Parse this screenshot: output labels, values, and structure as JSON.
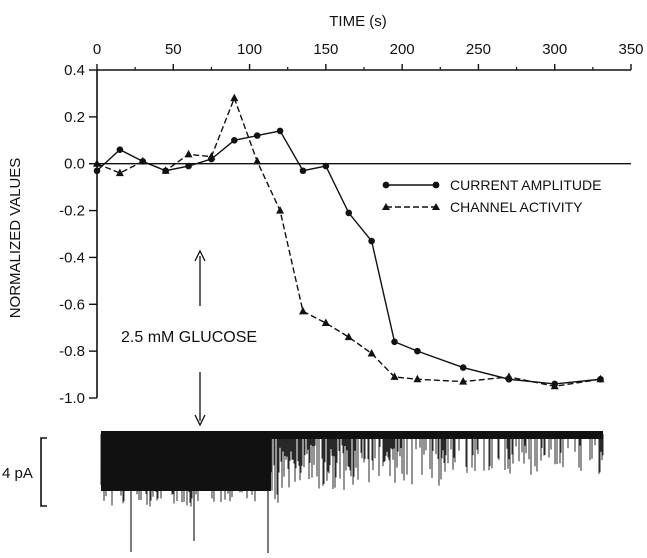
{
  "chart_data": {
    "type": "line",
    "xlabel": "TIME (s)",
    "ylabel": "NORMALIZED VALUES",
    "xlim": [
      0,
      350
    ],
    "ylim": [
      -1.0,
      0.4
    ],
    "x_ticks": [
      "0",
      "50",
      "100",
      "150",
      "200",
      "250",
      "300",
      "350"
    ],
    "y_ticks": [
      "0.4",
      "0.2",
      "0.0",
      "-0.2",
      "-0.4",
      "-0.6",
      "-0.8",
      "-1.0"
    ],
    "x_axis_position": "top",
    "zero_line": true,
    "legend_position": "right",
    "series": [
      {
        "name": "CURRENT AMPLITUDE",
        "marker": "circle",
        "x": [
          0,
          15,
          30,
          45,
          60,
          75,
          90,
          105,
          120,
          135,
          150,
          165,
          180,
          195,
          210,
          240,
          270,
          300,
          330
        ],
        "y": [
          -0.03,
          0.06,
          0.01,
          -0.03,
          -0.01,
          0.02,
          0.1,
          0.12,
          0.14,
          -0.03,
          -0.01,
          -0.21,
          -0.33,
          -0.76,
          -0.8,
          -0.87,
          -0.92,
          -0.94,
          -0.92
        ]
      },
      {
        "name": "CHANNEL ACTIVITY",
        "marker": "triangle",
        "x": [
          0,
          15,
          30,
          45,
          60,
          75,
          90,
          105,
          120,
          135,
          150,
          165,
          180,
          195,
          210,
          240,
          270,
          300,
          330
        ],
        "y": [
          0.0,
          -0.04,
          0.01,
          -0.03,
          0.04,
          0.03,
          0.28,
          0.01,
          -0.2,
          -0.63,
          -0.68,
          -0.74,
          -0.81,
          -0.91,
          -0.92,
          -0.93,
          -0.91,
          -0.95,
          -0.92
        ]
      }
    ],
    "annotation": {
      "text": "2.5 mM GLUCOSE",
      "x": 67
    },
    "trace": {
      "scale_label": "4 pA",
      "x_start": 0,
      "x_end": 330
    }
  }
}
